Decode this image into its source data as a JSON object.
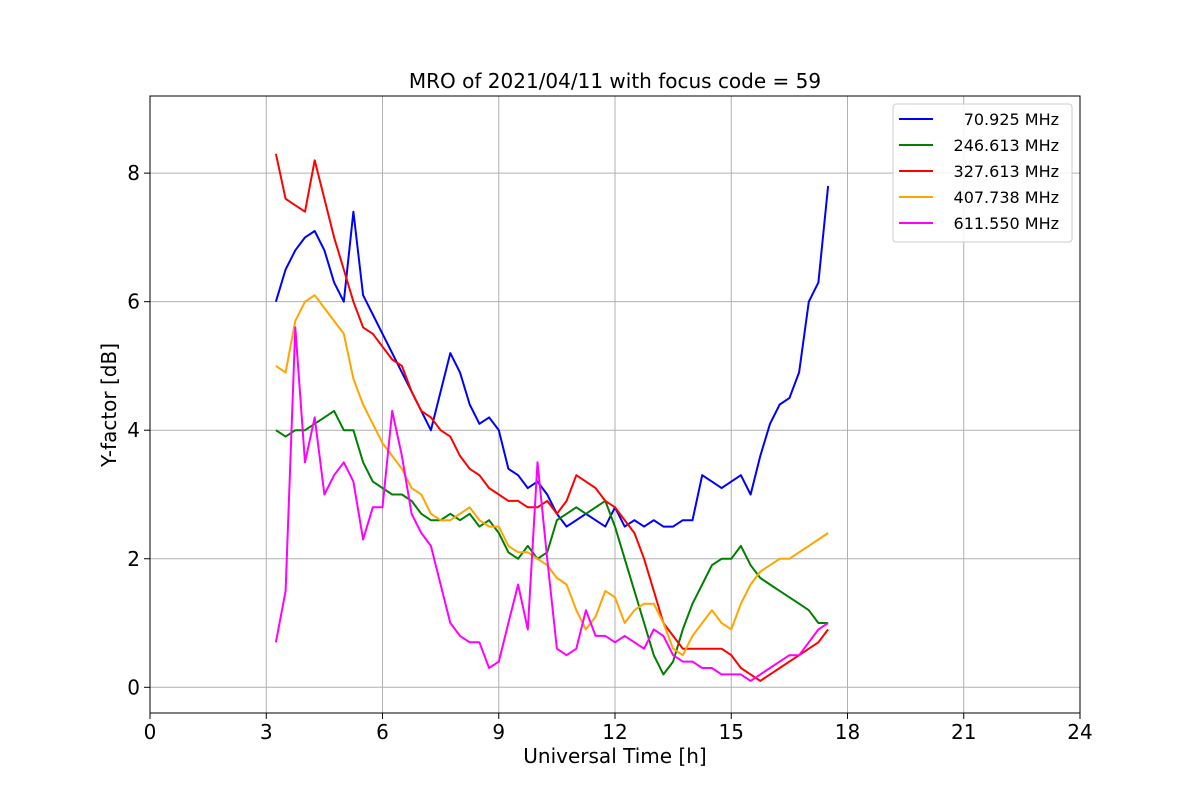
{
  "chart_data": {
    "type": "line",
    "title": "MRO of 2021/04/11 with focus code = 59",
    "xlabel": "Universal Time [h]",
    "ylabel": "Y-factor [dB]",
    "xlim": [
      0,
      24
    ],
    "ylim": [
      -0.4,
      9.2
    ],
    "xticks": [
      "0",
      "3",
      "6",
      "9",
      "12",
      "15",
      "18",
      "21",
      "24"
    ],
    "yticks": [
      "0",
      "2",
      "4",
      "6",
      "8"
    ],
    "grid": true,
    "legend_position": "top-right",
    "series": [
      {
        "name": "70.925 MHz",
        "color": "#0000ff",
        "x": [
          3.25,
          3.5,
          3.75,
          4.0,
          4.25,
          4.5,
          4.75,
          5.0,
          5.25,
          5.5,
          5.75,
          6.0,
          6.25,
          6.5,
          6.75,
          7.0,
          7.25,
          7.5,
          7.75,
          8.0,
          8.25,
          8.5,
          8.75,
          9.0,
          9.25,
          9.5,
          9.75,
          10.0,
          10.25,
          10.5,
          10.75,
          11.0,
          11.25,
          11.5,
          11.75,
          12.0,
          12.25,
          12.5,
          12.75,
          13.0,
          13.25,
          13.5,
          13.75,
          14.0,
          14.25,
          14.5,
          14.75,
          15.0,
          15.25,
          15.5,
          15.75,
          16.0,
          16.25,
          16.5,
          16.75,
          17.0,
          17.25,
          17.5
        ],
        "y": [
          6.0,
          6.5,
          6.8,
          7.0,
          7.1,
          6.8,
          6.3,
          6.0,
          7.4,
          6.1,
          5.8,
          5.5,
          5.2,
          4.9,
          4.6,
          4.3,
          4.0,
          4.6,
          5.2,
          4.9,
          4.4,
          4.1,
          4.2,
          4.0,
          3.4,
          3.3,
          3.1,
          3.2,
          3.0,
          2.7,
          2.5,
          2.6,
          2.7,
          2.6,
          2.5,
          2.8,
          2.5,
          2.6,
          2.5,
          2.6,
          2.5,
          2.5,
          2.6,
          2.6,
          3.3,
          3.2,
          3.1,
          3.2,
          3.3,
          3.0,
          3.6,
          4.1,
          4.4,
          4.5,
          4.9,
          6.0,
          6.3,
          7.8
        ]
      },
      {
        "name": "246.613 MHz",
        "color": "#008000",
        "x": [
          3.25,
          3.5,
          3.75,
          4.0,
          4.25,
          4.5,
          4.75,
          5.0,
          5.25,
          5.5,
          5.75,
          6.0,
          6.25,
          6.5,
          6.75,
          7.0,
          7.25,
          7.5,
          7.75,
          8.0,
          8.25,
          8.5,
          8.75,
          9.0,
          9.25,
          9.5,
          9.75,
          10.0,
          10.25,
          10.5,
          10.75,
          11.0,
          11.25,
          11.5,
          11.75,
          12.0,
          12.25,
          12.5,
          12.75,
          13.0,
          13.25,
          13.5,
          13.75,
          14.0,
          14.25,
          14.5,
          14.75,
          15.0,
          15.25,
          15.5,
          15.75,
          16.0,
          16.25,
          16.5,
          16.75,
          17.0,
          17.25,
          17.5
        ],
        "y": [
          4.0,
          3.9,
          4.0,
          4.0,
          4.1,
          4.2,
          4.3,
          4.0,
          4.0,
          3.5,
          3.2,
          3.1,
          3.0,
          3.0,
          2.9,
          2.7,
          2.6,
          2.6,
          2.7,
          2.6,
          2.7,
          2.5,
          2.6,
          2.4,
          2.1,
          2.0,
          2.2,
          2.0,
          2.1,
          2.6,
          2.7,
          2.8,
          2.7,
          2.8,
          2.9,
          2.5,
          2.0,
          1.5,
          1.0,
          0.5,
          0.2,
          0.4,
          0.9,
          1.3,
          1.6,
          1.9,
          2.0,
          2.0,
          2.2,
          1.9,
          1.7,
          1.6,
          1.5,
          1.4,
          1.3,
          1.2,
          1.0,
          1.0
        ]
      },
      {
        "name": "327.613 MHz",
        "color": "#ff0000",
        "x": [
          3.25,
          3.5,
          3.75,
          4.0,
          4.25,
          4.5,
          4.75,
          5.0,
          5.25,
          5.5,
          5.75,
          6.0,
          6.25,
          6.5,
          6.75,
          7.0,
          7.25,
          7.5,
          7.75,
          8.0,
          8.25,
          8.5,
          8.75,
          9.0,
          9.25,
          9.5,
          9.75,
          10.0,
          10.25,
          10.5,
          10.75,
          11.0,
          11.25,
          11.5,
          11.75,
          12.0,
          12.25,
          12.5,
          12.75,
          13.0,
          13.25,
          13.5,
          13.75,
          14.0,
          14.25,
          14.5,
          14.75,
          15.0,
          15.25,
          15.5,
          15.75,
          16.0,
          16.25,
          16.5,
          16.75,
          17.0,
          17.25,
          17.5
        ],
        "y": [
          8.3,
          7.6,
          7.5,
          7.4,
          8.2,
          7.6,
          7.0,
          6.5,
          6.0,
          5.6,
          5.5,
          5.3,
          5.1,
          5.0,
          4.6,
          4.3,
          4.2,
          4.0,
          3.9,
          3.6,
          3.4,
          3.3,
          3.1,
          3.0,
          2.9,
          2.9,
          2.8,
          2.8,
          2.9,
          2.7,
          2.9,
          3.3,
          3.2,
          3.1,
          2.9,
          2.8,
          2.6,
          2.4,
          2.0,
          1.5,
          1.0,
          0.8,
          0.6,
          0.6,
          0.6,
          0.6,
          0.6,
          0.5,
          0.3,
          0.2,
          0.1,
          0.2,
          0.3,
          0.4,
          0.5,
          0.6,
          0.7,
          0.9
        ]
      },
      {
        "name": "407.738 MHz",
        "color": "#ffa500",
        "x": [
          3.25,
          3.5,
          3.75,
          4.0,
          4.25,
          4.5,
          4.75,
          5.0,
          5.25,
          5.5,
          5.75,
          6.0,
          6.25,
          6.5,
          6.75,
          7.0,
          7.25,
          7.5,
          7.75,
          8.0,
          8.25,
          8.5,
          8.75,
          9.0,
          9.25,
          9.5,
          9.75,
          10.0,
          10.25,
          10.5,
          10.75,
          11.0,
          11.25,
          11.5,
          11.75,
          12.0,
          12.25,
          12.5,
          12.75,
          13.0,
          13.25,
          13.5,
          13.75,
          14.0,
          14.25,
          14.5,
          14.75,
          15.0,
          15.25,
          15.5,
          15.75,
          16.0,
          16.25,
          16.5,
          16.75,
          17.0,
          17.25,
          17.5
        ],
        "y": [
          5.0,
          4.9,
          5.7,
          6.0,
          6.1,
          5.9,
          5.7,
          5.5,
          4.8,
          4.4,
          4.1,
          3.8,
          3.6,
          3.4,
          3.1,
          3.0,
          2.7,
          2.6,
          2.6,
          2.7,
          2.8,
          2.6,
          2.5,
          2.5,
          2.2,
          2.1,
          2.1,
          2.0,
          1.9,
          1.7,
          1.6,
          1.2,
          0.9,
          1.1,
          1.5,
          1.4,
          1.0,
          1.2,
          1.3,
          1.3,
          1.0,
          0.6,
          0.5,
          0.8,
          1.0,
          1.2,
          1.0,
          0.9,
          1.3,
          1.6,
          1.8,
          1.9,
          2.0,
          2.0,
          2.1,
          2.2,
          2.3,
          2.4
        ]
      },
      {
        "name": "611.550 MHz",
        "color": "#ff00ff",
        "x": [
          3.25,
          3.5,
          3.75,
          4.0,
          4.25,
          4.5,
          4.75,
          5.0,
          5.25,
          5.5,
          5.75,
          6.0,
          6.25,
          6.5,
          6.75,
          7.0,
          7.25,
          7.5,
          7.75,
          8.0,
          8.25,
          8.5,
          8.75,
          9.0,
          9.25,
          9.5,
          9.75,
          10.0,
          10.25,
          10.5,
          10.75,
          11.0,
          11.25,
          11.5,
          11.75,
          12.0,
          12.25,
          12.5,
          12.75,
          13.0,
          13.25,
          13.5,
          13.75,
          14.0,
          14.25,
          14.5,
          14.75,
          15.0,
          15.25,
          15.5,
          15.75,
          16.0,
          16.25,
          16.5,
          16.75,
          17.0,
          17.25,
          17.5
        ],
        "y": [
          0.7,
          1.5,
          5.6,
          3.5,
          4.2,
          3.0,
          3.3,
          3.5,
          3.2,
          2.3,
          2.8,
          2.8,
          4.3,
          3.6,
          2.7,
          2.4,
          2.2,
          1.6,
          1.0,
          0.8,
          0.7,
          0.7,
          0.3,
          0.4,
          1.0,
          1.6,
          0.9,
          3.5,
          2.0,
          0.6,
          0.5,
          0.6,
          1.2,
          0.8,
          0.8,
          0.7,
          0.8,
          0.7,
          0.6,
          0.9,
          0.8,
          0.5,
          0.4,
          0.4,
          0.3,
          0.3,
          0.2,
          0.2,
          0.2,
          0.1,
          0.2,
          0.3,
          0.4,
          0.5,
          0.5,
          0.7,
          0.9,
          1.0
        ]
      }
    ]
  }
}
